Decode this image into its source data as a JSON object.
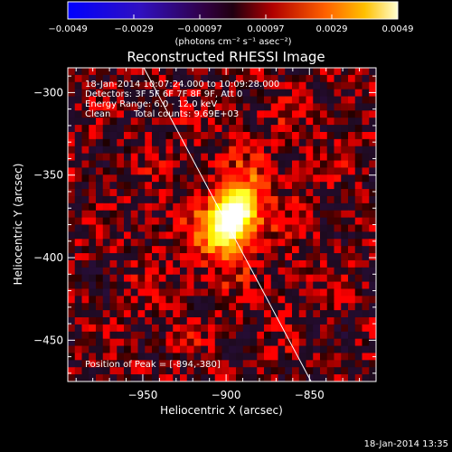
{
  "colorbar": {
    "ticks": [
      "-0.0049",
      "-0.0029",
      "-0.00097",
      "0.00097",
      "0.0029",
      "0.0049"
    ],
    "unit_line": "(photons cm⁻² s⁻¹ asec⁻²)"
  },
  "footer_timestamp": "18-Jan-2014 13:35",
  "chart_data": {
    "type": "heatmap",
    "title": "Reconstructed RHESSI Image",
    "xlabel": "Heliocentric X (arcsec)",
    "ylabel": "Heliocentric Y (arcsec)",
    "xlim": [
      -995,
      -810
    ],
    "ylim": [
      -475,
      -285
    ],
    "x_ticks": [
      -950,
      -900,
      -850
    ],
    "x_tick_labels": [
      "−950",
      "−900",
      "−850"
    ],
    "y_ticks": [
      -300,
      -350,
      -400,
      -450
    ],
    "y_tick_labels": [
      "−300",
      "−350",
      "−400",
      "−450"
    ],
    "colormap": "hot with blue/purple negatives",
    "value_range": [
      -0.0049,
      0.0049
    ],
    "annotations": [
      "18-Jan-2014 10:07:24.000 to 10:09:28.000",
      "Detectors: 3F 5F 6F 7F 8F 9F, Att 0",
      "Energy Range: 6.0 - 12.0 keV",
      "Clean",
      "Total counts: 9.69E+03"
    ],
    "peak_label": "Position of Peak = [-894,-380]",
    "peak_position": [
      -894,
      -380
    ],
    "limb_line": [
      [
        -952,
        -280
      ],
      [
        -849,
        -475
      ]
    ],
    "source": {
      "x": -896,
      "y": -376,
      "sigma_x": 10,
      "sigma_y": 16,
      "tilt_deg": -28
    }
  },
  "colors": {
    "background": "#000000",
    "frame": "#ffffff",
    "limb": "#ffffff"
  }
}
